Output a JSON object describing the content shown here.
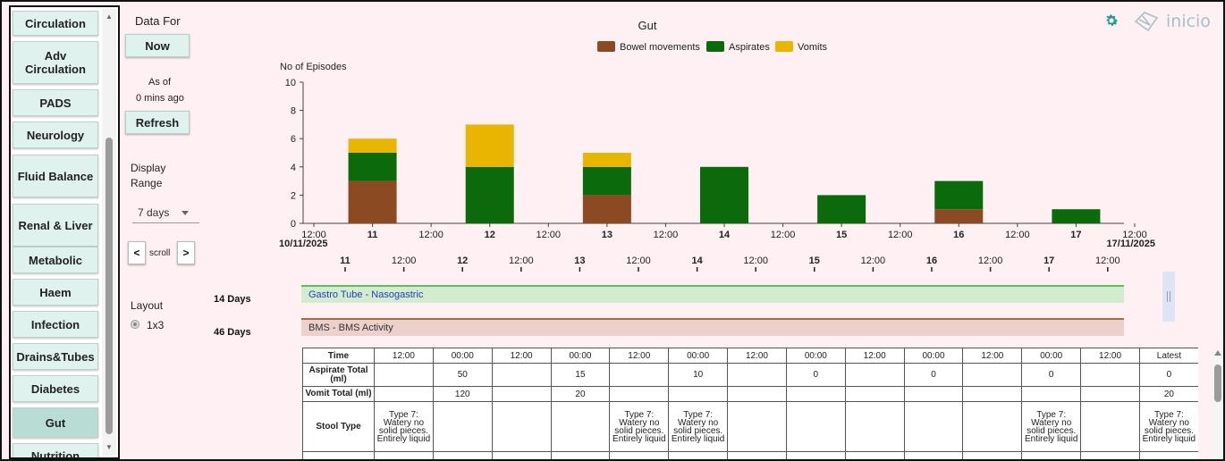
{
  "sidebar": {
    "items": [
      {
        "label": "Circulation",
        "active": false
      },
      {
        "label": "Adv Circulation",
        "active": false
      },
      {
        "label": "PADS",
        "active": false
      },
      {
        "label": "Neurology",
        "active": false
      },
      {
        "label": "Fluid Balance",
        "active": false
      },
      {
        "label": "Renal & Liver",
        "active": false
      },
      {
        "label": "Metabolic",
        "active": false
      },
      {
        "label": "Haem",
        "active": false
      },
      {
        "label": "Infection",
        "active": false
      },
      {
        "label": "Drains&Tubes",
        "active": false
      },
      {
        "label": "Diabetes",
        "active": false
      },
      {
        "label": "Gut",
        "active": true
      },
      {
        "label": "Nutrition",
        "active": false
      }
    ]
  },
  "controls": {
    "data_for_label": "Data For",
    "now_button": "Now",
    "as_of_label": "As of",
    "as_of_value": "0 mins ago",
    "refresh_button": "Refresh",
    "display_range_label": "Display Range",
    "display_range_value": "7 days",
    "scroll_left": "<",
    "scroll_label": "scroll",
    "scroll_right": ">",
    "layout_label": "Layout",
    "layout_option": "1x3"
  },
  "header": {
    "logo_text": "inicio",
    "accent_color": "#1e9c91"
  },
  "chart_data": {
    "type": "bar",
    "stacked": true,
    "title": "Gut",
    "ylabel": "No of Episodes",
    "ylim": [
      0,
      10
    ],
    "yticks": [
      0,
      2,
      4,
      6,
      8,
      10
    ],
    "legend_position": "top-center",
    "x_tick_labels": [
      "12:00",
      "11",
      "12:00",
      "12",
      "12:00",
      "13",
      "12:00",
      "14",
      "12:00",
      "15",
      "12:00",
      "16",
      "12:00",
      "17",
      "12:00"
    ],
    "x_bold_labels": [
      "11",
      "12",
      "13",
      "14",
      "15",
      "16",
      "17"
    ],
    "range_start_label": "10/11/2025",
    "range_end_label": "17/11/2025",
    "categories": [
      "11",
      "12",
      "13",
      "14",
      "15",
      "16",
      "17"
    ],
    "series": [
      {
        "name": "Bowel movements",
        "color": "#8b4a22",
        "values": [
          3,
          0,
          2,
          0,
          0,
          1,
          0
        ]
      },
      {
        "name": "Aspirates",
        "color": "#0b6b0b",
        "values": [
          2,
          4,
          2,
          4,
          2,
          2,
          1
        ]
      },
      {
        "name": "Vomits",
        "color": "#e8b500",
        "values": [
          1,
          3,
          1,
          0,
          0,
          0,
          0
        ]
      }
    ]
  },
  "timeline": {
    "tick_labels": [
      "11",
      "12:00",
      "12",
      "12:00",
      "13",
      "12:00",
      "14",
      "12:00",
      "15",
      "12:00",
      "16",
      "12:00",
      "17",
      "12:00"
    ],
    "lanes": [
      {
        "days": "14 Days",
        "label": "Gastro Tube - Nasogastric"
      },
      {
        "days": "46 Days",
        "label": "BMS - BMS Activity"
      }
    ]
  },
  "table": {
    "time_header": "Time",
    "columns": [
      "12:00",
      "00:00",
      "12:00",
      "00:00",
      "12:00",
      "00:00",
      "12:00",
      "00:00",
      "12:00",
      "00:00",
      "12:00",
      "00:00",
      "12:00",
      "Latest"
    ],
    "rows": [
      {
        "label": "Aspirate Total (ml)",
        "cells": [
          "",
          "50",
          "",
          "15",
          "",
          "10",
          "",
          "0",
          "",
          "0",
          "",
          "0",
          "",
          "0"
        ]
      },
      {
        "label": "Vomit Total (ml)",
        "cells": [
          "",
          "120",
          "",
          "20",
          "",
          "",
          "",
          "",
          "",
          "",
          "",
          "",
          "",
          "20"
        ]
      },
      {
        "label": "Stool Type",
        "cells": [
          "Type 7: Watery no solid pieces. Entirely liquid",
          "",
          "",
          "",
          "Type 7: Watery no solid pieces. Entirely liquid",
          "Type 7: Watery no solid pieces. Entirely liquid",
          "",
          "",
          "",
          "",
          "",
          "Type 7: Watery no solid pieces. Entirely liquid",
          "",
          "Type 7: Watery no solid pieces. Entirely liquid"
        ]
      }
    ]
  }
}
